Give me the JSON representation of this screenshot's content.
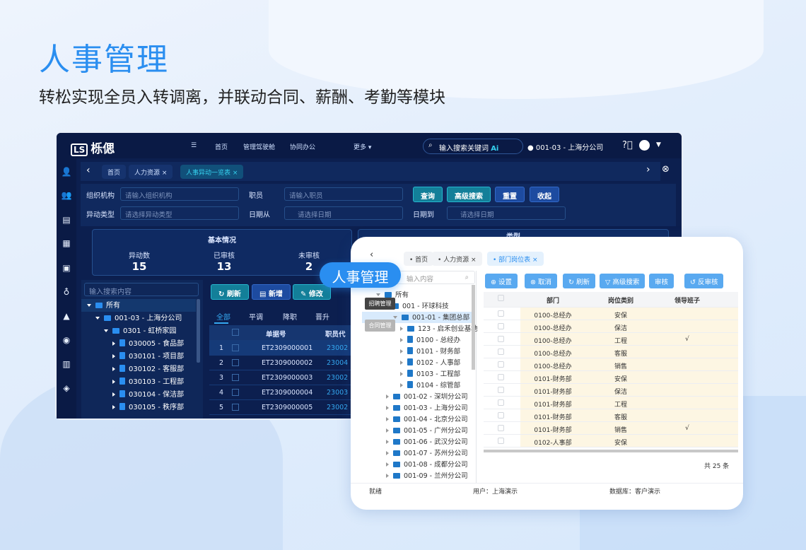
{
  "title": "人事管理",
  "subtitle": "转松实现全员入转调离，并联动合同、薪酬、考勤等模块",
  "badge": "人事管理",
  "tooltips": [
    "招聘管理",
    "合同管理"
  ],
  "colors": {
    "accent": "#2a8ef0",
    "dark_bg": "#0c1f4f",
    "cyan": "#137f99"
  },
  "dark": {
    "logo": "栎偲",
    "nav": [
      "首页",
      "管理驾驶舱",
      "协同办公",
      "更多 ▾"
    ],
    "search_placeholder": "输入搜索关键词",
    "ai": "Ai",
    "location": "001-03 - 上海分公司",
    "tabs": [
      "首页",
      "人力资源",
      "人事异动一览表"
    ],
    "filters": {
      "org_label": "组织机构",
      "org_ph": "请输入组织机构",
      "emp_label": "职员",
      "emp_ph": "请输入职员",
      "type_label": "异动类型",
      "type_ph": "请选择异动类型",
      "from_label": "日期从",
      "from_ph": "请选择日期",
      "to_label": "日期到",
      "to_ph": "请选择日期"
    },
    "buttons": [
      "查询",
      "高级搜索",
      "重置",
      "收起"
    ],
    "stats_title": "基本情况",
    "stats2_title": "类型",
    "stats": [
      {
        "label": "异动数",
        "value": "15"
      },
      {
        "label": "已审核",
        "value": "13"
      },
      {
        "label": "未审核",
        "value": "2"
      }
    ],
    "tree_search_ph": "输入搜索内容",
    "tree": [
      "所有",
      "001-03 - 上海分公司",
      "0301 - 虹桥家园",
      "030005 - 食品部",
      "030101 - 项目部",
      "030102 - 客服部",
      "030103 - 工程部",
      "030104 - 保洁部",
      "030105 - 秩序部"
    ],
    "grid_buttons": [
      "刷新",
      "新增",
      "修改"
    ],
    "grid_tabs": [
      "全部",
      "平调",
      "降职",
      "晋升"
    ],
    "columns": [
      "单据号",
      "职员代"
    ],
    "rows": [
      [
        "1",
        "ET2309000001",
        "23002"
      ],
      [
        "2",
        "ET2309000002",
        "23004"
      ],
      [
        "3",
        "ET2309000003",
        "23002"
      ],
      [
        "4",
        "ET2309000004",
        "23003"
      ],
      [
        "5",
        "ET2309000005",
        "23002"
      ]
    ]
  },
  "card": {
    "tabs": [
      "首页",
      "人力资源",
      "部门岗位表"
    ],
    "tree_search_ph": "输入内容",
    "tree": [
      "所有",
      "001 - 环球科技",
      "001-01 - 集团总部",
      "123 - 启禾创业基地",
      "0100 - 总经办",
      "0101 - 财务部",
      "0102 - 人事部",
      "0103 - 工程部",
      "0104 - 综管部",
      "001-02 - 深圳分公司",
      "001-03 - 上海分公司",
      "001-04 - 北京分公司",
      "001-05 - 广州分公司",
      "001-06 - 武汉分公司",
      "001-07 - 苏州分公司",
      "001-08 - 成都分公司",
      "001-09 - 兰州分公司"
    ],
    "toolbar": [
      "⊕ 设置",
      "⊗ 取消",
      "↻ 刷新",
      "▽ 高级搜索",
      "审核",
      "↺ 反审核"
    ],
    "columns": [
      "部门",
      "岗位类别",
      "领导班子"
    ],
    "rows": [
      [
        "0100-总经办",
        "安保",
        ""
      ],
      [
        "0100-总经办",
        "保洁",
        ""
      ],
      [
        "0100-总经办",
        "工程",
        "√"
      ],
      [
        "0100-总经办",
        "客服",
        ""
      ],
      [
        "0100-总经办",
        "销售",
        ""
      ],
      [
        "0101-财务部",
        "安保",
        ""
      ],
      [
        "0101-财务部",
        "保洁",
        ""
      ],
      [
        "0101-财务部",
        "工程",
        ""
      ],
      [
        "0101-财务部",
        "客服",
        ""
      ],
      [
        "0101-财务部",
        "销售",
        "√"
      ],
      [
        "0102-人事部",
        "安保",
        ""
      ]
    ],
    "total": "共 25 条",
    "status": {
      "ready": "就绪",
      "user": "用户：上海演示",
      "db": "数据库：客户演示"
    }
  }
}
